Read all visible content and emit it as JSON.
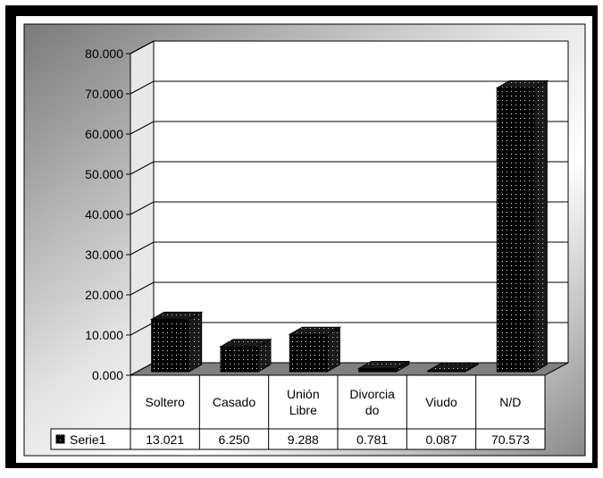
{
  "chart_data": {
    "type": "bar",
    "title": "",
    "xlabel": "",
    "ylabel": "",
    "categories": [
      [
        "Soltero"
      ],
      [
        "Casado"
      ],
      [
        "Unión",
        "Libre"
      ],
      [
        "Divorcia",
        "do"
      ],
      [
        "Viudo"
      ],
      [
        "N/D"
      ]
    ],
    "series": [
      {
        "name": "Serie1",
        "values": [
          13.021,
          6.25,
          9.288,
          0.781,
          0.087,
          70.573
        ],
        "value_labels": [
          "13.021",
          "6.250",
          "9.288",
          "0.781",
          "0.087",
          "70.573"
        ]
      }
    ],
    "ylim": [
      0,
      80
    ],
    "ytick_labels": [
      "0.000",
      "10.000",
      "20.000",
      "30.000",
      "40.000",
      "50.000",
      "60.000",
      "70.000",
      "80.000"
    ],
    "grid": true,
    "legend": "in-data-table",
    "style": "3d-column",
    "colors": {
      "bar_fill": "#000000",
      "bar_dots": "#ffffff",
      "floor": "#7f7f7f",
      "outer_frame": "#000000"
    }
  }
}
